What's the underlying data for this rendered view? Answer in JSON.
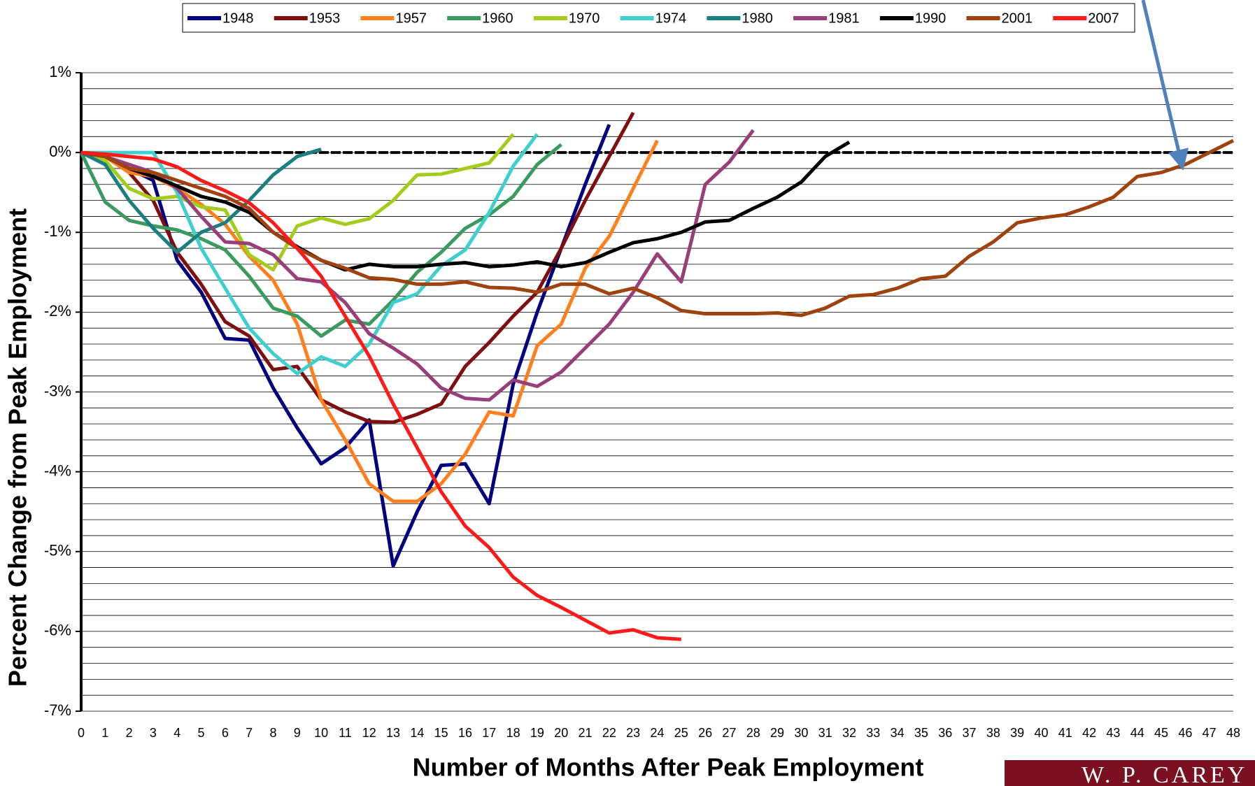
{
  "chart_data": {
    "type": "line",
    "x_label": "Number of Months After Peak Employment",
    "y_label": "Percent Change from Peak Employment",
    "logo_text": "W. P. CAREY",
    "xlim": [
      0,
      48
    ],
    "xticks": [
      0,
      1,
      2,
      3,
      4,
      5,
      6,
      7,
      8,
      9,
      10,
      11,
      12,
      13,
      14,
      15,
      16,
      17,
      18,
      19,
      20,
      21,
      22,
      23,
      24,
      25,
      26,
      27,
      28,
      29,
      30,
      31,
      32,
      33,
      34,
      35,
      36,
      37,
      38,
      39,
      40,
      41,
      42,
      43,
      44,
      45,
      46,
      47,
      48
    ],
    "ylim": [
      -7,
      1
    ],
    "yticks": [
      {
        "value": -7,
        "label": "-7%"
      },
      {
        "value": -6,
        "label": "-6%"
      },
      {
        "value": -5,
        "label": "-5%"
      },
      {
        "value": -4,
        "label": "-4%"
      },
      {
        "value": -3,
        "label": "-3%"
      },
      {
        "value": -2,
        "label": "-2%"
      },
      {
        "value": -1,
        "label": "-1%"
      },
      {
        "value": 0,
        "label": "0%"
      },
      {
        "value": 1,
        "label": "1%"
      }
    ],
    "grid": true,
    "legend": "top",
    "series": [
      {
        "name": "1948",
        "color": "#000080",
        "values": [
          0,
          -0.05,
          -0.2,
          -0.35,
          -1.35,
          -1.75,
          -2.33,
          -2.35,
          -2.95,
          -3.45,
          -3.9,
          -3.7,
          -3.35,
          -5.18,
          -4.5,
          -3.92,
          -3.9,
          -4.4,
          -2.9,
          -2.0,
          -1.2,
          -0.4,
          0.35
        ]
      },
      {
        "name": "1953",
        "color": "#7f0f0f",
        "values": [
          0,
          -0.05,
          -0.25,
          -0.6,
          -1.25,
          -1.65,
          -2.12,
          -2.3,
          -2.72,
          -2.68,
          -3.1,
          -3.25,
          -3.37,
          -3.38,
          -3.28,
          -3.15,
          -2.68,
          -2.38,
          -2.05,
          -1.75,
          -1.2,
          -0.6,
          -0.05,
          0.5
        ]
      },
      {
        "name": "1957",
        "color": "#ff7f1e",
        "values": [
          0,
          -0.05,
          -0.25,
          -0.3,
          -0.45,
          -0.65,
          -0.9,
          -1.3,
          -1.6,
          -2.15,
          -3.1,
          -3.6,
          -4.15,
          -4.37,
          -4.37,
          -4.15,
          -3.78,
          -3.25,
          -3.3,
          -2.42,
          -2.15,
          -1.45,
          -1.05,
          -0.45,
          0.15
        ]
      },
      {
        "name": "1960",
        "color": "#3a9a5f",
        "values": [
          0,
          -0.62,
          -0.85,
          -0.92,
          -0.97,
          -1.08,
          -1.22,
          -1.55,
          -1.95,
          -2.05,
          -2.3,
          -2.1,
          -2.15,
          -1.85,
          -1.5,
          -1.25,
          -0.95,
          -0.78,
          -0.55,
          -0.15,
          0.1
        ]
      },
      {
        "name": "1970",
        "color": "#a4cc1c",
        "values": [
          0,
          -0.1,
          -0.45,
          -0.58,
          -0.55,
          -0.68,
          -0.72,
          -1.28,
          -1.47,
          -0.92,
          -0.82,
          -0.9,
          -0.83,
          -0.6,
          -0.28,
          -0.27,
          -0.2,
          -0.13,
          0.23
        ]
      },
      {
        "name": "1974",
        "color": "#3fcfcf",
        "values": [
          0,
          0,
          0,
          0,
          -0.5,
          -1.2,
          -1.7,
          -2.2,
          -2.52,
          -2.77,
          -2.56,
          -2.68,
          -2.4,
          -1.88,
          -1.77,
          -1.42,
          -1.22,
          -0.75,
          -0.17,
          0.23
        ]
      },
      {
        "name": "1980",
        "color": "#1a7f7f",
        "values": [
          0,
          -0.15,
          -0.6,
          -0.95,
          -1.25,
          -1.0,
          -0.88,
          -0.6,
          -0.28,
          -0.05,
          0.04
        ]
      },
      {
        "name": "1981",
        "color": "#983f7a",
        "values": [
          0,
          -0.05,
          -0.15,
          -0.25,
          -0.45,
          -0.8,
          -1.12,
          -1.14,
          -1.28,
          -1.58,
          -1.62,
          -1.88,
          -2.27,
          -2.45,
          -2.65,
          -2.95,
          -3.08,
          -3.1,
          -2.85,
          -2.93,
          -2.75,
          -2.45,
          -2.15,
          -1.75,
          -1.27,
          -1.62,
          -0.4,
          -0.12,
          0.28
        ]
      },
      {
        "name": "1990",
        "color": "#000000",
        "values": [
          0,
          -0.05,
          -0.2,
          -0.3,
          -0.42,
          -0.55,
          -0.62,
          -0.75,
          -1.0,
          -1.18,
          -1.35,
          -1.47,
          -1.4,
          -1.43,
          -1.43,
          -1.4,
          -1.38,
          -1.43,
          -1.41,
          -1.37,
          -1.43,
          -1.38,
          -1.25,
          -1.13,
          -1.08,
          -1.0,
          -0.87,
          -0.85,
          -0.7,
          -0.56,
          -0.37,
          -0.05,
          0.13
        ]
      },
      {
        "name": "2001",
        "color": "#a0420e",
        "values": [
          0,
          -0.05,
          -0.2,
          -0.25,
          -0.35,
          -0.45,
          -0.55,
          -0.7,
          -1.0,
          -1.2,
          -1.35,
          -1.45,
          -1.57,
          -1.59,
          -1.65,
          -1.65,
          -1.62,
          -1.69,
          -1.7,
          -1.75,
          -1.65,
          -1.65,
          -1.77,
          -1.7,
          -1.82,
          -1.98,
          -2.02,
          -2.02,
          -2.02,
          -2.01,
          -2.04,
          -1.95,
          -1.8,
          -1.78,
          -1.7,
          -1.58,
          -1.55,
          -1.3,
          -1.12,
          -0.88,
          -0.82,
          -0.78,
          -0.68,
          -0.56,
          -0.3,
          -0.25,
          -0.15,
          0,
          0.15
        ]
      },
      {
        "name": "2007",
        "color": "#ff1a1a",
        "values": [
          0,
          -0.02,
          -0.05,
          -0.08,
          -0.18,
          -0.35,
          -0.48,
          -0.63,
          -0.88,
          -1.2,
          -1.55,
          -2.05,
          -2.55,
          -3.15,
          -3.7,
          -4.25,
          -4.68,
          -4.95,
          -5.32,
          -5.55,
          -5.7,
          -5.86,
          -6.02,
          -5.98,
          -6.08,
          -6.1
        ]
      }
    ]
  }
}
